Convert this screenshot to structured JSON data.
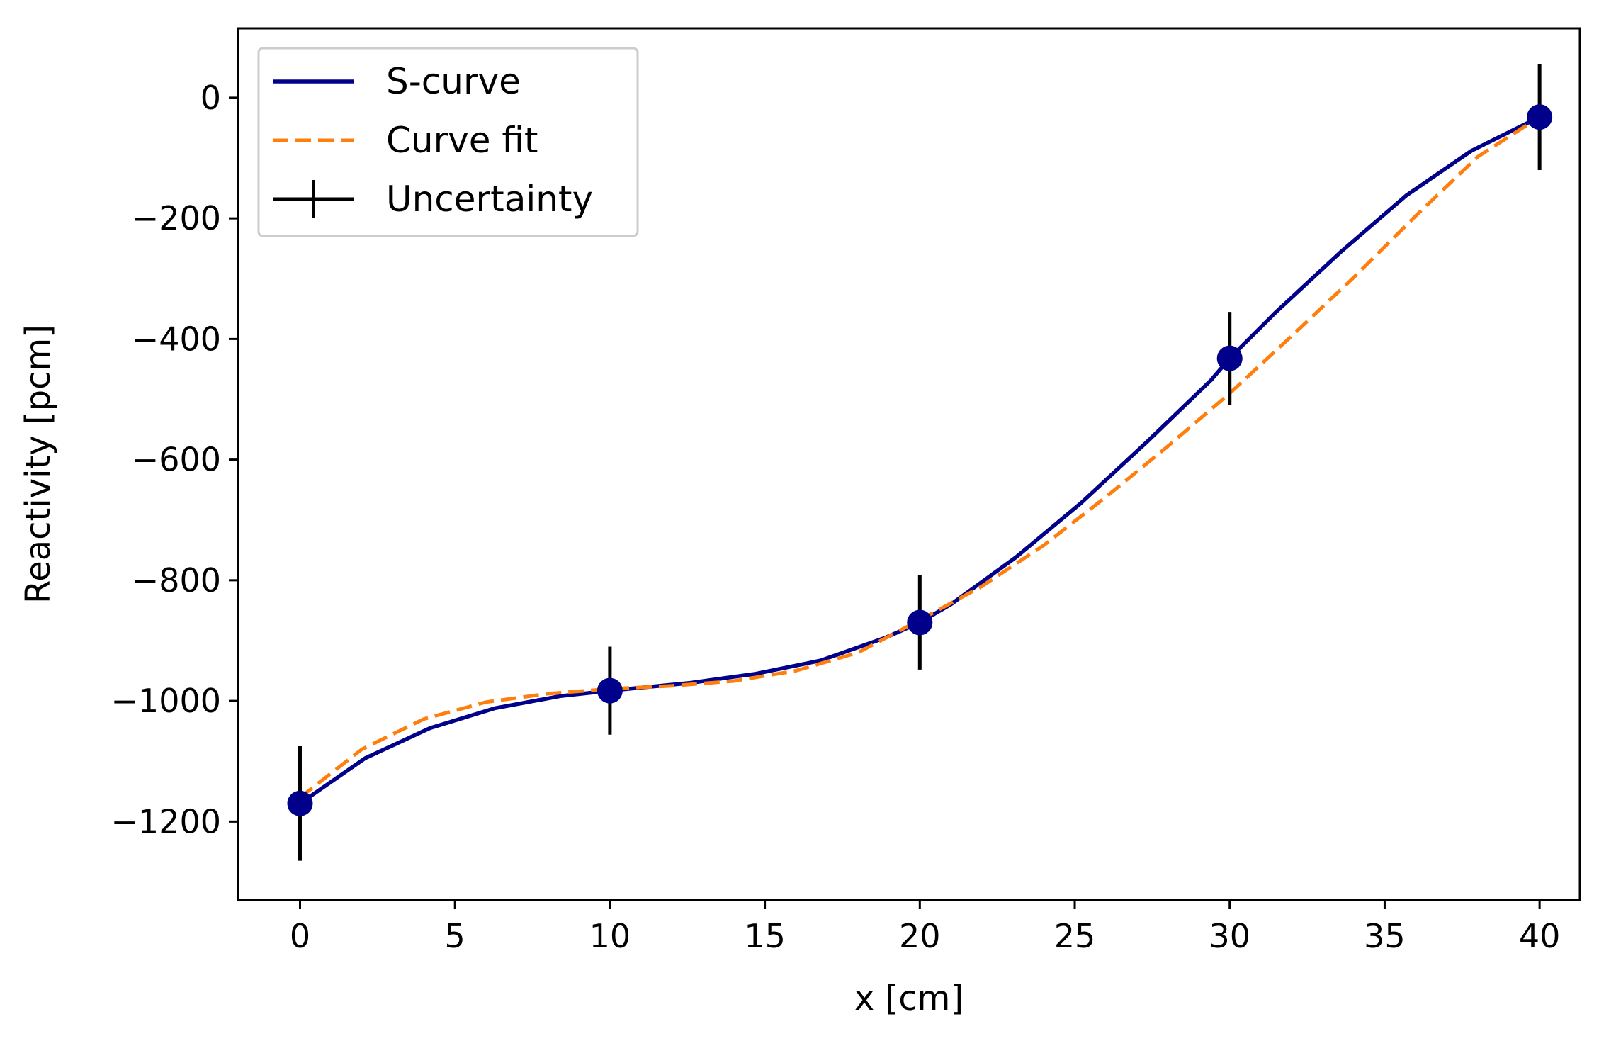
{
  "chart_data": {
    "type": "line",
    "title": "",
    "xlabel": "x [cm]",
    "ylabel": "Reactivity [pcm]",
    "xlim": [
      -2,
      41.3
    ],
    "ylim": [
      -1330,
      115
    ],
    "xticks": [
      0,
      5,
      10,
      15,
      20,
      25,
      30,
      35,
      40
    ],
    "xtick_labels": [
      "0",
      "5",
      "10",
      "15",
      "20",
      "25",
      "30",
      "35",
      "40"
    ],
    "yticks": [
      0,
      -200,
      -400,
      -600,
      -800,
      -1000,
      -1200
    ],
    "ytick_labels": [
      "0",
      "−200",
      "−400",
      "−600",
      "−800",
      "−1000",
      "−1200"
    ],
    "grid": false,
    "legend_position": "top-left",
    "series": [
      {
        "name": "S-curve",
        "style": "solid",
        "color": "#00008b",
        "x": [
          0,
          2.1,
          4.2,
          6.3,
          8.4,
          10,
          12.6,
          14.7,
          16.8,
          18.9,
          20,
          21,
          23.1,
          25.2,
          27.3,
          29.4,
          30,
          31.5,
          33.6,
          35.7,
          37.8,
          40
        ],
        "y": [
          -1170,
          -1095,
          -1045,
          -1012,
          -992,
          -983,
          -970,
          -955,
          -933,
          -895,
          -870,
          -840,
          -762,
          -672,
          -572,
          -468,
          -432,
          -355,
          -255,
          -162,
          -88,
          -32
        ]
      },
      {
        "name": "Curve fit",
        "style": "dashed",
        "color": "#ff7f0e",
        "x": [
          0,
          2,
          4,
          6,
          8,
          10,
          12,
          14,
          16,
          18,
          20,
          22,
          24,
          26,
          28,
          30,
          32,
          34,
          36,
          38,
          40
        ],
        "y": [
          -1160,
          -1080,
          -1030,
          -1002,
          -988,
          -980,
          -975,
          -967,
          -950,
          -920,
          -866,
          -810,
          -742,
          -662,
          -578,
          -490,
          -395,
          -298,
          -196,
          -98,
          -32
        ]
      }
    ],
    "error_bars": {
      "name": "Uncertainty",
      "color": "#000000",
      "marker_color": "#00008b",
      "x": [
        0,
        10,
        20,
        30,
        40
      ],
      "y": [
        -1170,
        -983,
        -870,
        -432,
        -32
      ],
      "yerr": [
        95,
        73,
        78,
        77,
        88
      ]
    }
  }
}
